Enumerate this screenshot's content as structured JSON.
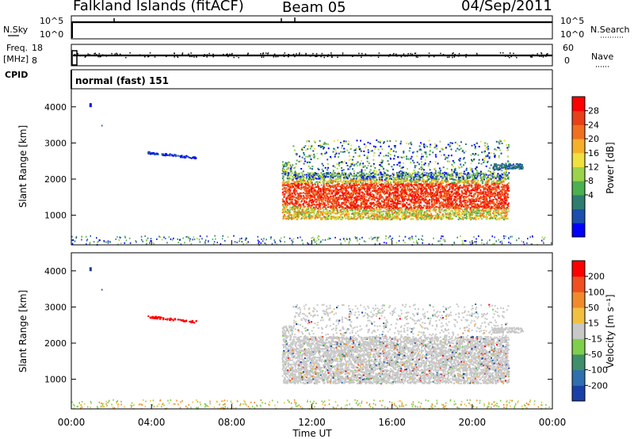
{
  "header": {
    "station": "Falkland Islands (fitACF)",
    "beam": "Beam 05",
    "date": "04/Sep/2011"
  },
  "top_panels": {
    "nsky_label": "N.Sky",
    "nsearch_label": "N.Search",
    "freq_label": "Freq.",
    "freq_unit": "[MHz]",
    "nave_label": "Nave",
    "cpid_label": "CPID",
    "cpid_value": "normal (fast) 151",
    "noise_left_ticks": [
      "10^5",
      "10^0"
    ],
    "noise_right_ticks": [
      "10^5",
      "10^0"
    ],
    "freq_ticks": [
      "18",
      "8"
    ],
    "nave_ticks": [
      "60",
      "0"
    ]
  },
  "chart_data": [
    {
      "type": "heatmap",
      "name": "power",
      "ylabel": "Slant Range [km]",
      "ylim": [
        180,
        4500
      ],
      "xlim": [
        0,
        24
      ],
      "yticks": [
        1000,
        2000,
        3000,
        4000
      ],
      "colorbar": {
        "label": "Power [dB]",
        "ticks": [
          "28",
          "24",
          "20",
          "16",
          "12",
          "8",
          "4"
        ],
        "colors": [
          "#0000ff",
          "#1a4fb0",
          "#2e7d70",
          "#4caf50",
          "#9bd34a",
          "#f0e040",
          "#f7b02a",
          "#f07020",
          "#e84018",
          "#ff0000"
        ]
      }
    },
    {
      "type": "heatmap",
      "name": "velocity",
      "ylabel": "Slant Range [km]",
      "xlabel": "Time UT",
      "ylim": [
        180,
        4500
      ],
      "xlim": [
        0,
        24
      ],
      "yticks": [
        1000,
        2000,
        3000,
        4000
      ],
      "xticks": [
        "00:00",
        "04:00",
        "08:00",
        "12:00",
        "16:00",
        "20:00",
        "00:00"
      ],
      "colorbar": {
        "label": "Velocity [m s⁻¹]",
        "ticks": [
          "200",
          "100",
          "50",
          "15",
          "-15",
          "-50",
          "-100",
          "-200"
        ],
        "colors": [
          "#1a3fa8",
          "#2f6fb0",
          "#3f8f6a",
          "#7fcf4a",
          "#c8c8c8",
          "#f2c040",
          "#f08a2a",
          "#f05020",
          "#ff0000"
        ]
      }
    }
  ]
}
